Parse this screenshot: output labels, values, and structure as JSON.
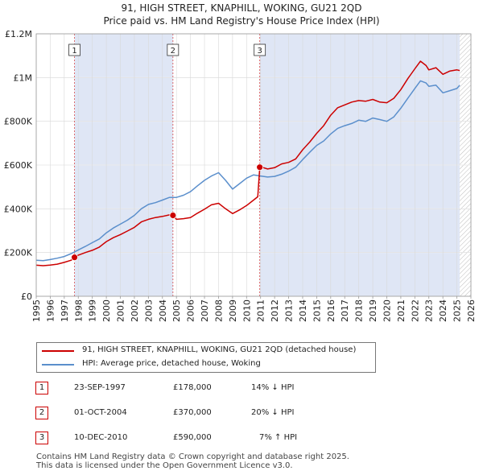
{
  "header": {
    "title_line1": "91, HIGH STREET, KNAPHILL, WOKING, GU21 2QD",
    "title_line2": "Price paid vs. HM Land Registry's House Price Index (HPI)"
  },
  "colors": {
    "price_paid": "#cc0000",
    "hpi": "#5b8fcc",
    "shade": "#dfe6f5",
    "future_hatch": "#bbbbbb"
  },
  "chart_data": {
    "type": "line",
    "xlim": [
      1995,
      2026
    ],
    "ylim": [
      0,
      1200000
    ],
    "x_ticks": [
      1995,
      1996,
      1997,
      1998,
      1999,
      2000,
      2001,
      2002,
      2003,
      2004,
      2005,
      2006,
      2007,
      2008,
      2009,
      2010,
      2011,
      2012,
      2013,
      2014,
      2015,
      2016,
      2017,
      2018,
      2019,
      2020,
      2021,
      2022,
      2023,
      2024,
      2025,
      2026
    ],
    "y_ticks": [
      {
        "value": 0,
        "label": "£0"
      },
      {
        "value": 200000,
        "label": "£200K"
      },
      {
        "value": 400000,
        "label": "£400K"
      },
      {
        "value": 600000,
        "label": "£600K"
      },
      {
        "value": 800000,
        "label": "£800K"
      },
      {
        "value": 1000000,
        "label": "£1M"
      },
      {
        "value": 1200000,
        "label": "£1.2M"
      }
    ],
    "grid": true,
    "data_end_year": 2025.2,
    "series": [
      {
        "name": "91, HIGH STREET, KNAPHILL, WOKING, GU21 2QD (detached house)",
        "color": "#cc0000",
        "x": [
          1995.0,
          1995.5,
          1996.0,
          1996.5,
          1997.0,
          1997.5,
          1997.73,
          1998.0,
          1998.5,
          1999.0,
          1999.5,
          2000.0,
          2000.5,
          2001.0,
          2001.5,
          2002.0,
          2002.5,
          2003.0,
          2003.5,
          2004.0,
          2004.5,
          2004.75,
          2005.0,
          2005.5,
          2006.0,
          2006.5,
          2007.0,
          2007.5,
          2008.0,
          2008.5,
          2009.0,
          2009.5,
          2010.0,
          2010.5,
          2010.8,
          2010.94,
          2011.0,
          2011.5,
          2012.0,
          2012.5,
          2013.0,
          2013.5,
          2014.0,
          2014.5,
          2015.0,
          2015.5,
          2016.0,
          2016.5,
          2017.0,
          2017.5,
          2018.0,
          2018.5,
          2019.0,
          2019.5,
          2020.0,
          2020.5,
          2021.0,
          2021.5,
          2022.0,
          2022.4,
          2022.8,
          2023.0,
          2023.5,
          2024.0,
          2024.5,
          2025.0,
          2025.2
        ],
        "values": [
          142000,
          140000,
          143000,
          147000,
          155000,
          165000,
          178000,
          188000,
          200000,
          210000,
          225000,
          250000,
          268000,
          282000,
          298000,
          315000,
          340000,
          352000,
          360000,
          365000,
          372000,
          370000,
          352000,
          355000,
          360000,
          380000,
          398000,
          418000,
          425000,
          400000,
          378000,
          395000,
          415000,
          440000,
          455000,
          590000,
          592000,
          582000,
          588000,
          605000,
          612000,
          628000,
          670000,
          705000,
          745000,
          780000,
          828000,
          862000,
          875000,
          888000,
          895000,
          892000,
          900000,
          888000,
          885000,
          905000,
          945000,
          995000,
          1040000,
          1075000,
          1055000,
          1035000,
          1045000,
          1015000,
          1030000,
          1035000,
          1032000
        ]
      },
      {
        "name": "HPI: Average price, detached house, Woking",
        "color": "#5b8fcc",
        "x": [
          1995.0,
          1995.5,
          1996.0,
          1996.5,
          1997.0,
          1997.5,
          1998.0,
          1998.5,
          1999.0,
          1999.5,
          2000.0,
          2000.5,
          2001.0,
          2001.5,
          2002.0,
          2002.5,
          2003.0,
          2003.5,
          2004.0,
          2004.5,
          2005.0,
          2005.5,
          2006.0,
          2006.5,
          2007.0,
          2007.5,
          2008.0,
          2008.5,
          2009.0,
          2009.5,
          2010.0,
          2010.5,
          2011.0,
          2011.5,
          2012.0,
          2012.5,
          2013.0,
          2013.5,
          2014.0,
          2014.5,
          2015.0,
          2015.5,
          2016.0,
          2016.5,
          2017.0,
          2017.5,
          2018.0,
          2018.5,
          2019.0,
          2019.5,
          2020.0,
          2020.5,
          2021.0,
          2021.5,
          2022.0,
          2022.4,
          2022.8,
          2023.0,
          2023.5,
          2024.0,
          2024.5,
          2025.0,
          2025.2
        ],
        "values": [
          165000,
          163000,
          168000,
          174000,
          182000,
          195000,
          212000,
          228000,
          245000,
          262000,
          290000,
          312000,
          330000,
          348000,
          370000,
          400000,
          420000,
          428000,
          440000,
          452000,
          452000,
          462000,
          478000,
          505000,
          530000,
          550000,
          565000,
          530000,
          490000,
          515000,
          540000,
          555000,
          550000,
          545000,
          548000,
          558000,
          572000,
          590000,
          625000,
          658000,
          690000,
          710000,
          742000,
          768000,
          780000,
          790000,
          805000,
          800000,
          815000,
          808000,
          800000,
          820000,
          860000,
          905000,
          950000,
          985000,
          975000,
          960000,
          965000,
          930000,
          940000,
          950000,
          965000
        ]
      }
    ],
    "sales": [
      {
        "id": "1",
        "x": 1997.73,
        "value": 178000
      },
      {
        "id": "2",
        "x": 2004.75,
        "value": 370000
      },
      {
        "id": "3",
        "x": 2010.94,
        "value": 590000
      }
    ]
  },
  "legend": {
    "price_label": "91, HIGH STREET, KNAPHILL, WOKING, GU21 2QD (detached house)",
    "hpi_label": "HPI: Average price, detached house, Woking"
  },
  "sales_table": [
    {
      "id": "1",
      "date": "23-SEP-1997",
      "price": "£178,000",
      "hpi_change": "14% ↓ HPI"
    },
    {
      "id": "2",
      "date": "01-OCT-2004",
      "price": "£370,000",
      "hpi_change": "20% ↓ HPI"
    },
    {
      "id": "3",
      "date": "10-DEC-2010",
      "price": "£590,000",
      "hpi_change": "7% ↑ HPI"
    }
  ],
  "footer": {
    "line1": "Contains HM Land Registry data © Crown copyright and database right 2025.",
    "line2": "This data is licensed under the Open Government Licence v3.0."
  }
}
